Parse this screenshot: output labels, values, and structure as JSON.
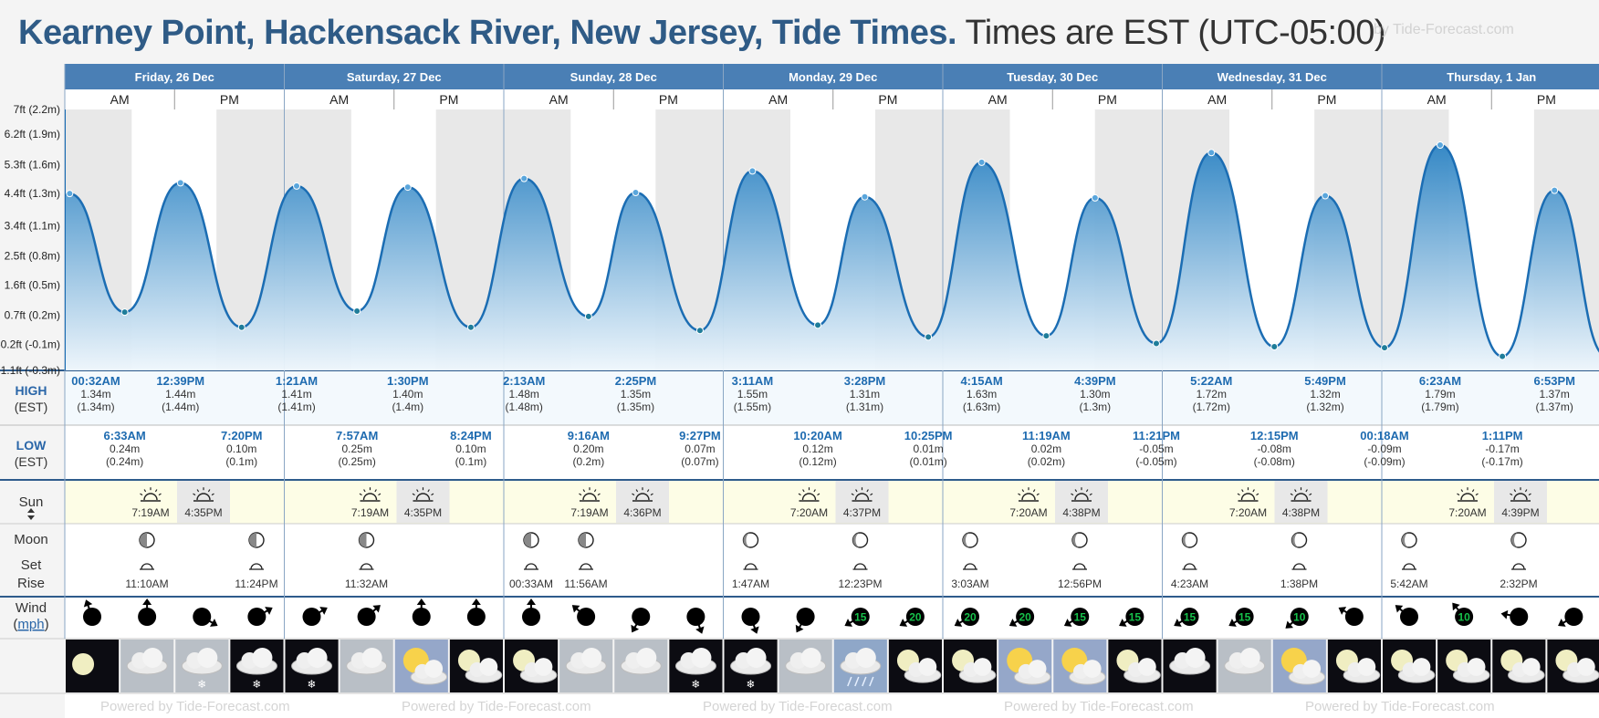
{
  "header": {
    "title_place": "Kearney Point, Hackensack River, New Jersey, Tide Times.",
    "title_tz": "Times are EST (UTC-05:00)",
    "brand": "by Tide-Forecast.com"
  },
  "footer_text": "Powered by Tide-Forecast.com",
  "row_labels": {
    "high": "HIGH",
    "low": "LOW",
    "est": "(EST)",
    "sun": "Sun",
    "moon": "Moon",
    "set": "Set",
    "rise": "Rise",
    "wind": "Wind",
    "wind_unit": "mph"
  },
  "chart_data": {
    "type": "area",
    "title": "Kearney Point, Hackensack River, New Jersey, Tide Times.",
    "y_unit": "ft (m)",
    "y_ticks": [
      "-1.1ft (-0.3m)",
      "-0.2ft (-0.1m)",
      "0.7ft (0.2m)",
      "1.6ft (0.5m)",
      "2.5ft (0.8m)",
      "3.4ft (1.1m)",
      "4.4ft (1.3m)",
      "5.3ft (1.6m)",
      "6.2ft (1.9m)",
      "7ft (2.2m)"
    ],
    "y_tick_values": [
      -0.3,
      -0.06,
      0.21,
      0.49,
      0.76,
      1.04,
      1.34,
      1.61,
      1.89,
      2.12
    ],
    "ylim": [
      -0.3,
      2.12
    ],
    "days": [
      "Friday, 26 Dec",
      "Saturday, 27 Dec",
      "Sunday, 28 Dec",
      "Monday, 29 Dec",
      "Tuesday, 30 Dec",
      "Wednesday, 31 Dec",
      "Thursday, 1 Jan"
    ],
    "ampm": [
      "AM",
      "PM"
    ],
    "sun": [
      {
        "rise": "7:19AM",
        "set": "4:35PM"
      },
      {
        "rise": "7:19AM",
        "set": "4:35PM"
      },
      {
        "rise": "7:19AM",
        "set": "4:36PM"
      },
      {
        "rise": "7:20AM",
        "set": "4:37PM"
      },
      {
        "rise": "7:20AM",
        "set": "4:38PM"
      },
      {
        "rise": "7:20AM",
        "set": "4:38PM"
      },
      {
        "rise": "7:20AM",
        "set": "4:39PM"
      }
    ],
    "tides": [
      {
        "type": "high",
        "day": 0,
        "time": "00:32AM",
        "m": 1.34,
        "label_m": "1.34m",
        "label_p": "(1.34m)"
      },
      {
        "type": "low",
        "day": 0,
        "time": "6:33AM",
        "m": 0.24,
        "label_m": "0.24m",
        "label_p": "(0.24m)"
      },
      {
        "type": "high",
        "day": 0,
        "time": "12:39PM",
        "m": 1.44,
        "label_m": "1.44m",
        "label_p": "(1.44m)"
      },
      {
        "type": "low",
        "day": 0,
        "time": "7:20PM",
        "m": 0.1,
        "label_m": "0.10m",
        "label_p": "(0.1m)"
      },
      {
        "type": "high",
        "day": 1,
        "time": "1:21AM",
        "m": 1.41,
        "label_m": "1.41m",
        "label_p": "(1.41m)"
      },
      {
        "type": "low",
        "day": 1,
        "time": "7:57AM",
        "m": 0.25,
        "label_m": "0.25m",
        "label_p": "(0.25m)"
      },
      {
        "type": "high",
        "day": 1,
        "time": "1:30PM",
        "m": 1.4,
        "label_m": "1.40m",
        "label_p": "(1.4m)"
      },
      {
        "type": "low",
        "day": 1,
        "time": "8:24PM",
        "m": 0.1,
        "label_m": "0.10m",
        "label_p": "(0.1m)"
      },
      {
        "type": "high",
        "day": 2,
        "time": "2:13AM",
        "m": 1.48,
        "label_m": "1.48m",
        "label_p": "(1.48m)"
      },
      {
        "type": "low",
        "day": 2,
        "time": "9:16AM",
        "m": 0.2,
        "label_m": "0.20m",
        "label_p": "(0.2m)"
      },
      {
        "type": "high",
        "day": 2,
        "time": "2:25PM",
        "m": 1.35,
        "label_m": "1.35m",
        "label_p": "(1.35m)"
      },
      {
        "type": "low",
        "day": 2,
        "time": "9:27PM",
        "m": 0.07,
        "label_m": "0.07m",
        "label_p": "(0.07m)"
      },
      {
        "type": "high",
        "day": 3,
        "time": "3:11AM",
        "m": 1.55,
        "label_m": "1.55m",
        "label_p": "(1.55m)"
      },
      {
        "type": "low",
        "day": 3,
        "time": "10:20AM",
        "m": 0.12,
        "label_m": "0.12m",
        "label_p": "(0.12m)"
      },
      {
        "type": "high",
        "day": 3,
        "time": "3:28PM",
        "m": 1.31,
        "label_m": "1.31m",
        "label_p": "(1.31m)"
      },
      {
        "type": "low",
        "day": 3,
        "time": "10:25PM",
        "m": 0.01,
        "label_m": "0.01m",
        "label_p": "(0.01m)"
      },
      {
        "type": "high",
        "day": 4,
        "time": "4:15AM",
        "m": 1.63,
        "label_m": "1.63m",
        "label_p": "(1.63m)"
      },
      {
        "type": "low",
        "day": 4,
        "time": "11:19AM",
        "m": 0.02,
        "label_m": "0.02m",
        "label_p": "(0.02m)"
      },
      {
        "type": "high",
        "day": 4,
        "time": "4:39PM",
        "m": 1.3,
        "label_m": "1.30m",
        "label_p": "(1.3m)"
      },
      {
        "type": "low",
        "day": 4,
        "time": "11:21PM",
        "m": -0.05,
        "label_m": "-0.05m",
        "label_p": "(-0.05m)"
      },
      {
        "type": "high",
        "day": 5,
        "time": "5:22AM",
        "m": 1.72,
        "label_m": "1.72m",
        "label_p": "(1.72m)"
      },
      {
        "type": "low",
        "day": 5,
        "time": "12:15PM",
        "m": -0.08,
        "label_m": "-0.08m",
        "label_p": "(-0.08m)"
      },
      {
        "type": "high",
        "day": 5,
        "time": "5:49PM",
        "m": 1.32,
        "label_m": "1.32m",
        "label_p": "(1.32m)"
      },
      {
        "type": "low",
        "day": 6,
        "time": "00:18AM",
        "m": -0.09,
        "label_m": "-0.09m",
        "label_p": "(-0.09m)"
      },
      {
        "type": "high",
        "day": 6,
        "time": "6:23AM",
        "m": 1.79,
        "label_m": "1.79m",
        "label_p": "(1.79m)"
      },
      {
        "type": "low",
        "day": 6,
        "time": "1:11PM",
        "m": -0.17,
        "label_m": "-0.17m",
        "label_p": "(-0.17m)"
      },
      {
        "type": "high",
        "day": 6,
        "time": "6:53PM",
        "m": 1.37,
        "label_m": "1.37m",
        "label_p": "(1.37m)"
      }
    ]
  },
  "moon": [
    {
      "time": "11:10AM",
      "ev": "rise",
      "phase": "third-quarter",
      "day": 0,
      "slot": 1
    },
    {
      "time": "11:24PM",
      "ev": "rise",
      "phase": "third-quarter",
      "day": 0,
      "slot": 3
    },
    {
      "time": "11:32AM",
      "ev": "rise",
      "phase": "third-quarter",
      "day": 1,
      "slot": 1
    },
    {
      "time": "00:33AM",
      "ev": "rise",
      "phase": "third-quarter",
      "day": 2,
      "slot": 0
    },
    {
      "time": "11:56AM",
      "ev": "rise",
      "phase": "third-quarter",
      "day": 2,
      "slot": 1
    },
    {
      "time": "1:47AM",
      "ev": "rise",
      "phase": "waning-crescent",
      "day": 3,
      "slot": 0
    },
    {
      "time": "12:23PM",
      "ev": "rise",
      "phase": "waning-crescent",
      "day": 3,
      "slot": 2
    },
    {
      "time": "3:03AM",
      "ev": "rise",
      "phase": "waning-crescent",
      "day": 4,
      "slot": 0
    },
    {
      "time": "12:56PM",
      "ev": "rise",
      "phase": "waning-crescent",
      "day": 4,
      "slot": 2
    },
    {
      "time": "4:23AM",
      "ev": "rise",
      "phase": "waning-crescent",
      "day": 5,
      "slot": 0
    },
    {
      "time": "1:38PM",
      "ev": "rise",
      "phase": "waning-crescent",
      "day": 5,
      "slot": 2
    },
    {
      "time": "5:42AM",
      "ev": "rise",
      "phase": "waning-crescent",
      "day": 6,
      "slot": 0
    },
    {
      "time": "2:32PM",
      "ev": "rise",
      "phase": "waning-crescent",
      "day": 6,
      "slot": 2
    }
  ],
  "wind": [
    {
      "v": 10,
      "dir": 160,
      "c": "#000"
    },
    {
      "v": 5,
      "dir": 180,
      "c": "#000"
    },
    {
      "v": 5,
      "dir": 300,
      "c": "#000"
    },
    {
      "v": 5,
      "dir": 240,
      "c": "#000"
    },
    {
      "v": 5,
      "dir": 240,
      "c": "#000"
    },
    {
      "v": 10,
      "dir": 230,
      "c": "#000"
    },
    {
      "v": 5,
      "dir": 180,
      "c": "#000"
    },
    {
      "v": 5,
      "dir": 180,
      "c": "#000"
    },
    {
      "v": 5,
      "dir": 180,
      "c": "#000"
    },
    {
      "v": 5,
      "dir": 130,
      "c": "#000"
    },
    {
      "v": 5,
      "dir": 30,
      "c": "#000"
    },
    {
      "v": 5,
      "dir": 340,
      "c": "#000"
    },
    {
      "v": 5,
      "dir": 340,
      "c": "#000"
    },
    {
      "v": 5,
      "dir": 30,
      "c": "#000"
    },
    {
      "v": 15,
      "dir": 60,
      "c": "#16c04a"
    },
    {
      "v": 20,
      "dir": 60,
      "c": "#16c04a"
    },
    {
      "v": 20,
      "dir": 60,
      "c": "#16c04a"
    },
    {
      "v": 20,
      "dir": 60,
      "c": "#16c04a"
    },
    {
      "v": 15,
      "dir": 60,
      "c": "#16c04a"
    },
    {
      "v": 15,
      "dir": 60,
      "c": "#16c04a"
    },
    {
      "v": 15,
      "dir": 60,
      "c": "#16c04a"
    },
    {
      "v": 15,
      "dir": 60,
      "c": "#16c04a"
    },
    {
      "v": 10,
      "dir": 50,
      "c": "#16c04a"
    },
    {
      "v": 10,
      "dir": 120,
      "c": "#000"
    },
    {
      "v": 10,
      "dir": 130,
      "c": "#000"
    },
    {
      "v": 10,
      "dir": 140,
      "c": "#16c04a"
    },
    {
      "v": 10,
      "dir": 100,
      "c": "#000"
    },
    {
      "v": 10,
      "dir": 60,
      "c": "#000"
    }
  ],
  "weather": [
    "clear-night",
    "cloudy",
    "cloudy-snow",
    "cloudy-night-snow",
    "cloudy-night-snow",
    "cloudy",
    "partly-cloudy-day",
    "partly-cloudy-night",
    "partly-cloudy-night",
    "cloudy",
    "cloudy",
    "cloudy-night-snow",
    "cloudy-night-snow",
    "cloudy",
    "rain-day",
    "partly-cloudy-night",
    "partly-cloudy-night",
    "partly-cloudy-day",
    "partly-cloudy-day",
    "partly-cloudy-night",
    "cloudy-night",
    "cloudy",
    "partly-cloudy-day",
    "partly-cloudy-night",
    "partly-cloudy-night",
    "partly-cloudy-night",
    "partly-cloudy-night",
    "partly-cloudy-night"
  ]
}
